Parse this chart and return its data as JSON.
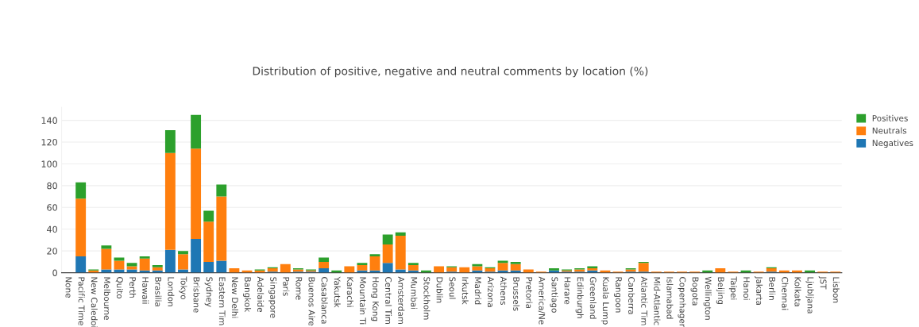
{
  "chart_data": {
    "type": "bar",
    "title": "Distribution of positive, negative and neutral comments by location (%)",
    "categories": [
      "None",
      "Pacific Time",
      "New Caledoi",
      "Melbourne",
      "Quito",
      "Perth",
      "Hawaii",
      "Brasilia",
      "London",
      "Tokyo",
      "Brisbane",
      "Sydney",
      "Eastern Tim",
      "New Delhi",
      "Bangkok",
      "Adelaide",
      "Singapore",
      "Paris",
      "Rome",
      "Buenos Aire",
      "Casablanca",
      "Yakutsk",
      "Karachi",
      "Mountain Ti",
      "Hong Kong",
      "Central Tim",
      "Amsterdam",
      "Mumbai",
      "Stockholm",
      "Dublin",
      "Seoul",
      "Irkutsk",
      "Madrid",
      "Arizona",
      "Athens",
      "Brussels",
      "Pretoria",
      "America/Ne",
      "Santiago",
      "Harare",
      "Edinburgh",
      "Greenland",
      "Kuala Lump",
      "Rangoon",
      "Canberra",
      "Atlantic Tim",
      "Mid-Atlantic",
      "Islamabad",
      "Copenhager",
      "Bogota",
      "Wellington",
      "Beijing",
      "Taipei",
      "Hanoi",
      "Jakarta",
      "Berlin",
      "Chennai",
      "Kolkata",
      "Ljubljana",
      "JST",
      "Lisbon"
    ],
    "stacked": true,
    "series": [
      {
        "name": "Negatives",
        "color": "#1f77b4",
        "values": [
          0,
          15,
          0,
          3,
          3,
          3,
          2,
          2,
          21,
          3,
          31,
          10,
          11,
          0,
          0,
          0,
          1,
          0,
          1,
          1,
          4,
          0,
          0,
          2,
          2,
          9,
          3,
          2,
          0,
          0,
          1,
          0,
          2,
          1,
          2,
          2,
          0,
          0,
          2,
          1,
          1,
          2,
          0,
          0,
          1,
          1,
          0,
          0,
          0,
          0,
          0,
          0,
          0,
          0,
          0,
          1,
          0,
          0,
          0,
          0,
          0
        ]
      },
      {
        "name": "Neutrals",
        "color": "#ff7f0e",
        "values": [
          0,
          53,
          2,
          19,
          8,
          3,
          11,
          3,
          89,
          14,
          83,
          37,
          59,
          4,
          2,
          2,
          3,
          8,
          2,
          1,
          6,
          0,
          6,
          5,
          13,
          17,
          31,
          5,
          0,
          6,
          4,
          5,
          4,
          3,
          7,
          6,
          3,
          1,
          0,
          1,
          2,
          2,
          2,
          1,
          2,
          8,
          1,
          1,
          1,
          1,
          0,
          4,
          1,
          0,
          1,
          3,
          2,
          2,
          0,
          1,
          1
        ]
      },
      {
        "name": "Positives",
        "color": "#2ca02c",
        "values": [
          0,
          15,
          1,
          3,
          3,
          3,
          2,
          2,
          21,
          3,
          31,
          10,
          11,
          0,
          0,
          1,
          1,
          0,
          1,
          1,
          4,
          2,
          0,
          2,
          2,
          9,
          3,
          2,
          2,
          0,
          1,
          0,
          2,
          1,
          2,
          2,
          0,
          0,
          2,
          1,
          1,
          2,
          0,
          0,
          1,
          1,
          0,
          0,
          0,
          0,
          2,
          0,
          0,
          2,
          0,
          1,
          0,
          0,
          2,
          0,
          0
        ]
      }
    ],
    "ylim": [
      0,
      152
    ],
    "yticks": [
      0,
      20,
      40,
      60,
      80,
      100,
      120,
      140
    ],
    "grid": "y",
    "legend": "top right"
  }
}
